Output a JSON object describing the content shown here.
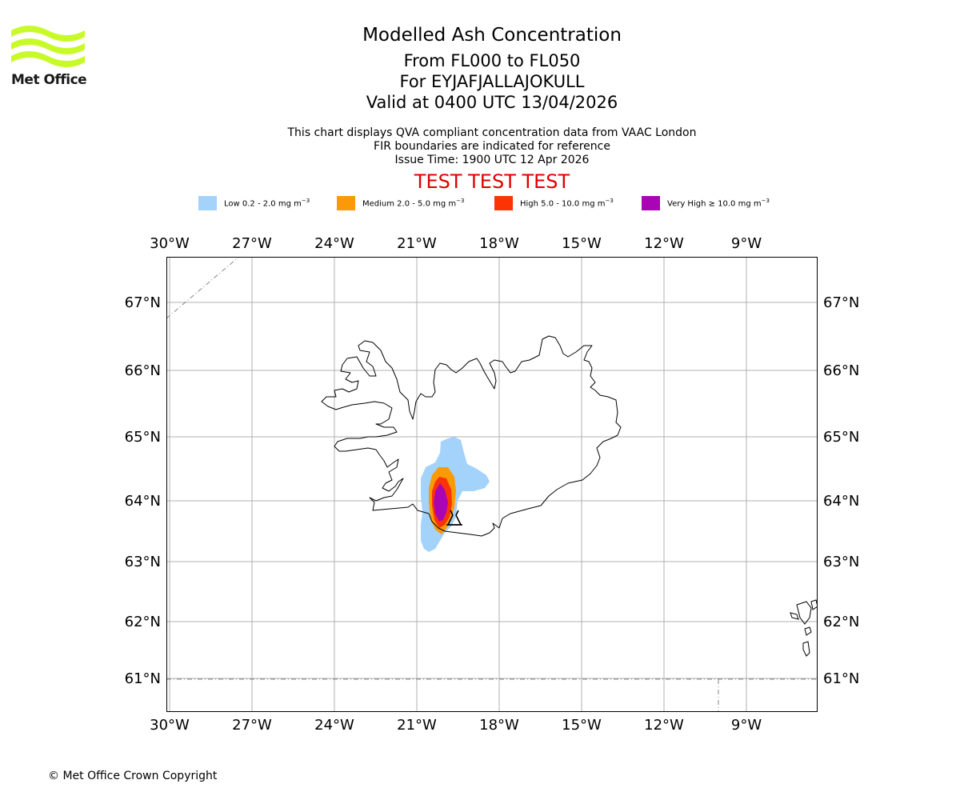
{
  "header": {
    "logo_text": "Met Office",
    "title": "Modelled Ash Concentration",
    "level_range": "From FL000 to FL050",
    "volcano_line": "For EYJAFJALLAJOKULL",
    "valid_line": "Valid at 0400 UTC 13/04/2026",
    "description_1": "This chart displays QVA compliant concentration data from VAAC London",
    "description_2": "FIR boundaries are indicated for reference",
    "issue_time": "Issue Time: 1900 UTC 12 Apr 2026",
    "test_banner": "TEST TEST TEST"
  },
  "legend": [
    {
      "label": "Low 0.2 - 2.0 mg m",
      "color": "#a3d2fa"
    },
    {
      "label": "Medium 2.0 - 5.0 mg m",
      "color": "#fa9a07"
    },
    {
      "label": "High 5.0 - 10.0 mg m",
      "color": "#fc3304"
    },
    {
      "label": "Very High ≥ 10.0 mg m",
      "color": "#a905b4"
    }
  ],
  "legend_unit_exponent": "−3",
  "map": {
    "lon_labels": [
      "30°W",
      "27°W",
      "24°W",
      "21°W",
      "18°W",
      "15°W",
      "12°W",
      "9°W"
    ],
    "lat_labels": [
      "67°N",
      "66°N",
      "65°N",
      "64°N",
      "63°N",
      "62°N",
      "61°N"
    ],
    "volcano_icon": "volcano-icon"
  },
  "footer": {
    "copyright": "© Met Office Crown Copyright"
  }
}
